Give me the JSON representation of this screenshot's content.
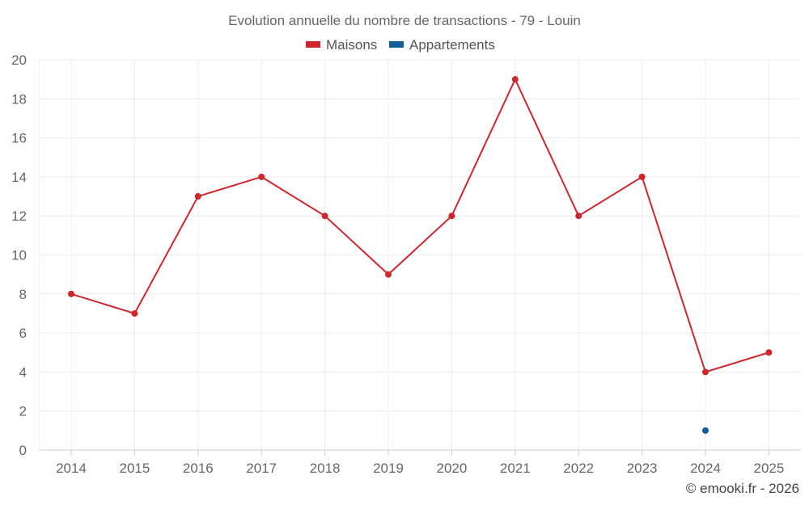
{
  "chart_data": {
    "type": "line",
    "title": "Evolution annuelle du nombre de transactions - 79 - Louin",
    "xlabel": "",
    "ylabel": "",
    "categories": [
      "2014",
      "2015",
      "2016",
      "2017",
      "2018",
      "2019",
      "2020",
      "2021",
      "2022",
      "2023",
      "2024",
      "2025"
    ],
    "ylim": [
      0,
      20
    ],
    "yticks": [
      0,
      2,
      4,
      6,
      8,
      10,
      12,
      14,
      16,
      18,
      20
    ],
    "grid": true,
    "legend_position": "top-center",
    "series": [
      {
        "name": "Maisons",
        "color": "#d0262b",
        "values": [
          8,
          7,
          13,
          14,
          12,
          9,
          12,
          19,
          12,
          14,
          4,
          5
        ]
      },
      {
        "name": "Appartements",
        "color": "#0f5f99",
        "values": [
          null,
          null,
          null,
          null,
          null,
          null,
          null,
          null,
          null,
          null,
          1,
          null
        ]
      }
    ]
  },
  "credit": "© emooki.fr - 2026"
}
